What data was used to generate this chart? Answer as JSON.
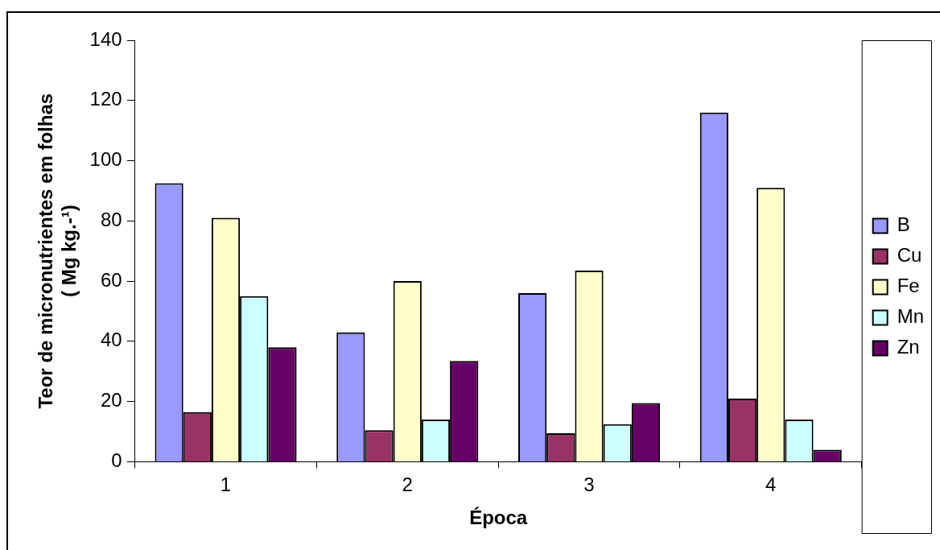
{
  "chart_data": {
    "type": "bar",
    "xlabel": "Época",
    "ylabel": "Teor de micronutrientes em folhas\n( Mg kg.-¹)",
    "categories": [
      "1",
      "2",
      "3",
      "4"
    ],
    "series": [
      {
        "name": "B",
        "color": "#9999ff",
        "values": [
          92.5,
          43,
          56,
          116
        ]
      },
      {
        "name": "Cu",
        "color": "#993366",
        "values": [
          16.5,
          10.5,
          9.5,
          21
        ]
      },
      {
        "name": "Fe",
        "color": "#ffffcc",
        "values": [
          81,
          60,
          63.5,
          91
        ]
      },
      {
        "name": "Mn",
        "color": "#ccffff",
        "values": [
          55,
          14,
          12.5,
          14
        ]
      },
      {
        "name": "Zn",
        "color": "#660066",
        "values": [
          38,
          33.5,
          19.5,
          4
        ]
      }
    ],
    "ylim": [
      0,
      140
    ],
    "yticks": [
      0,
      20,
      40,
      60,
      80,
      100,
      120,
      140
    ],
    "legend": "right"
  }
}
